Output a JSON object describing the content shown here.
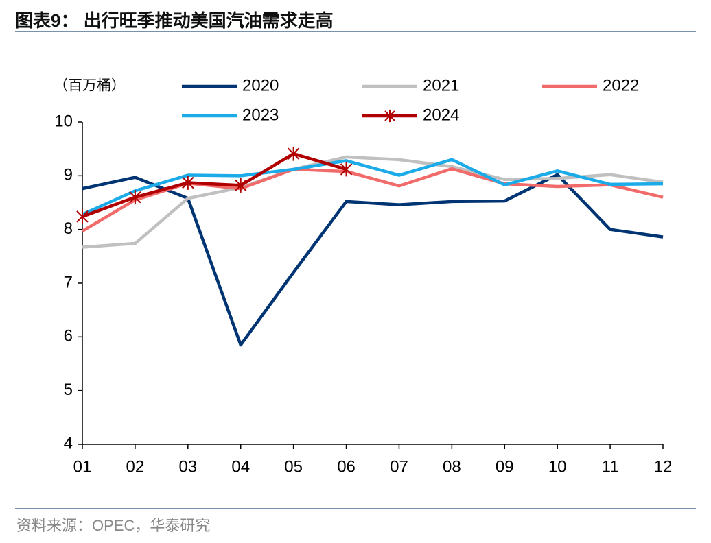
{
  "chart_data": {
    "type": "line",
    "title": "图表9：  出行旺季推动美国汽油需求走高",
    "y_label": "（百万桶）",
    "source": "资料来源：OPEC，华泰研究",
    "categories": [
      "01",
      "02",
      "03",
      "04",
      "05",
      "06",
      "07",
      "08",
      "09",
      "10",
      "11",
      "12"
    ],
    "series": [
      {
        "name": "2020",
        "color": "#003473",
        "values": [
          8.76,
          8.97,
          8.58,
          5.85,
          7.2,
          8.52,
          8.46,
          8.52,
          8.53,
          9.02,
          8.0,
          7.86
        ]
      },
      {
        "name": "2021",
        "color": "#c0c0c0",
        "values": [
          7.67,
          7.74,
          8.58,
          8.78,
          9.12,
          9.35,
          9.3,
          9.17,
          8.93,
          8.95,
          9.02,
          8.88
        ]
      },
      {
        "name": "2022",
        "color": "#f26b6b",
        "values": [
          7.97,
          8.55,
          8.86,
          8.76,
          9.12,
          9.08,
          8.81,
          9.13,
          8.85,
          8.8,
          8.83,
          8.6
        ]
      },
      {
        "name": "2023",
        "color": "#1aabe8",
        "values": [
          8.28,
          8.72,
          9.01,
          9.0,
          9.12,
          9.28,
          9.01,
          9.3,
          8.83,
          9.09,
          8.84,
          8.85
        ]
      },
      {
        "name": "2024",
        "color": "#b00000",
        "marker": "asterisk",
        "values": [
          8.24,
          8.6,
          8.87,
          8.82,
          9.41,
          9.12,
          null,
          null,
          null,
          null,
          null,
          null
        ]
      }
    ],
    "ylim": [
      4,
      10
    ],
    "yticks": [
      4,
      5,
      6,
      7,
      8,
      9,
      10
    ],
    "grid": false
  }
}
